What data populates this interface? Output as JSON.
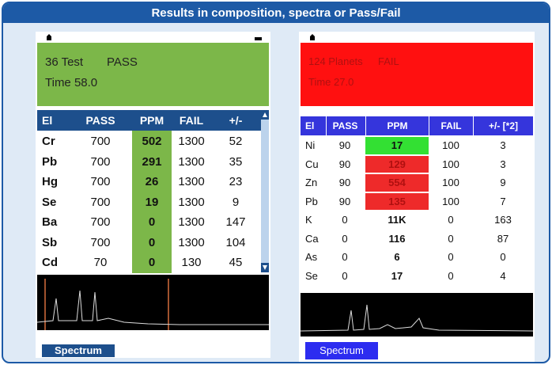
{
  "title": "Results in composition, spectra or Pass/Fail",
  "screens": [
    {
      "header": {
        "line1": "36 Test",
        "status": "PASS",
        "line2": "Time 58.0",
        "color": "#7cb749"
      },
      "table": {
        "columns": [
          "El",
          "PASS",
          "PPM",
          "FAIL",
          "+/-"
        ],
        "rows": [
          [
            "Cr",
            "700",
            "502",
            "1300",
            "52"
          ],
          [
            "Pb",
            "700",
            "291",
            "1300",
            "35"
          ],
          [
            "Hg",
            "700",
            "26",
            "1300",
            "23"
          ],
          [
            "Se",
            "700",
            "19",
            "1300",
            "9"
          ],
          [
            "Ba",
            "700",
            "0",
            "1300",
            "147"
          ],
          [
            "Sb",
            "700",
            "0",
            "1300",
            "104"
          ],
          [
            "Cd",
            "70",
            "0",
            "130",
            "45"
          ]
        ],
        "ppm_colors": [
          "#7cb749",
          "#7cb749",
          "#7cb749",
          "#7cb749",
          "#7cb749",
          "#7cb749",
          "#7cb749"
        ]
      },
      "button": "Spectrum"
    },
    {
      "header": {
        "line1": "124 Planets",
        "status": "FAIL",
        "line2": "Time 27.0",
        "color": "#ff1010"
      },
      "table": {
        "columns": [
          "El",
          "PASS",
          "PPM",
          "FAIL",
          "+/- [*2]"
        ],
        "rows": [
          [
            "Ni",
            "90",
            "17",
            "100",
            "3"
          ],
          [
            "Cu",
            "90",
            "129",
            "100",
            "3"
          ],
          [
            "Zn",
            "90",
            "554",
            "100",
            "9"
          ],
          [
            "Pb",
            "90",
            "135",
            "100",
            "7"
          ],
          [
            "K",
            "0",
            "11K",
            "0",
            "163"
          ],
          [
            "Ca",
            "0",
            "116",
            "0",
            "87"
          ],
          [
            "As",
            "0",
            "6",
            "0",
            "0"
          ],
          [
            "Se",
            "0",
            "17",
            "0",
            "4"
          ]
        ],
        "ppm_colors": [
          "#33e033",
          "#ee2a2a",
          "#ee2a2a",
          "#ee2a2a",
          null,
          null,
          null,
          null
        ]
      },
      "button": "Spectrum"
    }
  ]
}
